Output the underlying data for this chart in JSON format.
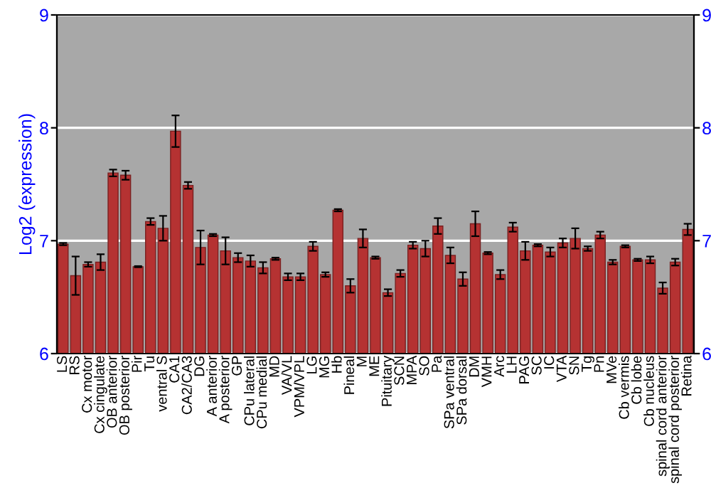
{
  "chart_data": {
    "type": "bar",
    "ylabel": "Log2 (expression)",
    "categories": [
      "LS",
      "RS",
      "Cx motor",
      "Cx cingulate",
      "OB anterior",
      "OB posterior",
      "Pir",
      "Tu",
      "ventral S",
      "CA1",
      "CA2/CA3",
      "DG",
      "A anterior",
      "A posterior",
      "GP",
      "CPu lateral",
      "CPu medial",
      "MD",
      "VA/VL",
      "VPM/VPL",
      "LG",
      "MG",
      "Hb",
      "Pineal",
      "M",
      "ME",
      "Pituitary",
      "SCN",
      "MPA",
      "SO",
      "Pa",
      "SPa ventral",
      "SPa dorsal",
      "DM",
      "VMH",
      "Arc",
      "LH",
      "PAG",
      "SC",
      "IC",
      "VTA",
      "SN",
      "Tg",
      "Pn",
      "MVe",
      "Cb vermis",
      "Cb lobe",
      "Cb nucleus",
      "spinal cord anterior",
      "spinal cord posterior",
      "Retina"
    ],
    "series": [
      {
        "color": "#b53232",
        "values": [
          6.97,
          6.69,
          6.79,
          6.81,
          7.6,
          7.58,
          6.77,
          7.17,
          7.11,
          7.97,
          7.49,
          6.94,
          7.05,
          6.91,
          6.85,
          6.82,
          6.76,
          6.84,
          6.68,
          6.68,
          6.95,
          6.7,
          7.27,
          6.6,
          7.02,
          6.85,
          6.54,
          6.71,
          6.96,
          6.93,
          7.13,
          6.87,
          6.66,
          7.15,
          6.89,
          6.7,
          7.12,
          6.91,
          6.96,
          6.9,
          6.98,
          7.02,
          6.93,
          7.05,
          6.81,
          6.95,
          6.83,
          6.83,
          6.58,
          6.81,
          7.1
        ],
        "errors": [
          0.01,
          0.17,
          0.02,
          0.07,
          0.03,
          0.04,
          0.005,
          0.03,
          0.11,
          0.14,
          0.03,
          0.15,
          0.01,
          0.12,
          0.04,
          0.05,
          0.05,
          0.01,
          0.03,
          0.03,
          0.04,
          0.02,
          0.01,
          0.06,
          0.08,
          0.01,
          0.03,
          0.03,
          0.03,
          0.07,
          0.07,
          0.07,
          0.06,
          0.11,
          0.01,
          0.04,
          0.04,
          0.08,
          0.01,
          0.04,
          0.04,
          0.09,
          0.02,
          0.03,
          0.02,
          0.01,
          0.01,
          0.03,
          0.05,
          0.03,
          0.05
        ]
      }
    ],
    "ylim": [
      6,
      9
    ],
    "yticks": [
      6,
      7,
      8,
      9
    ],
    "y2lim": [
      6,
      9
    ],
    "y2ticks": [
      6,
      7,
      8,
      9
    ],
    "grid": "y"
  }
}
